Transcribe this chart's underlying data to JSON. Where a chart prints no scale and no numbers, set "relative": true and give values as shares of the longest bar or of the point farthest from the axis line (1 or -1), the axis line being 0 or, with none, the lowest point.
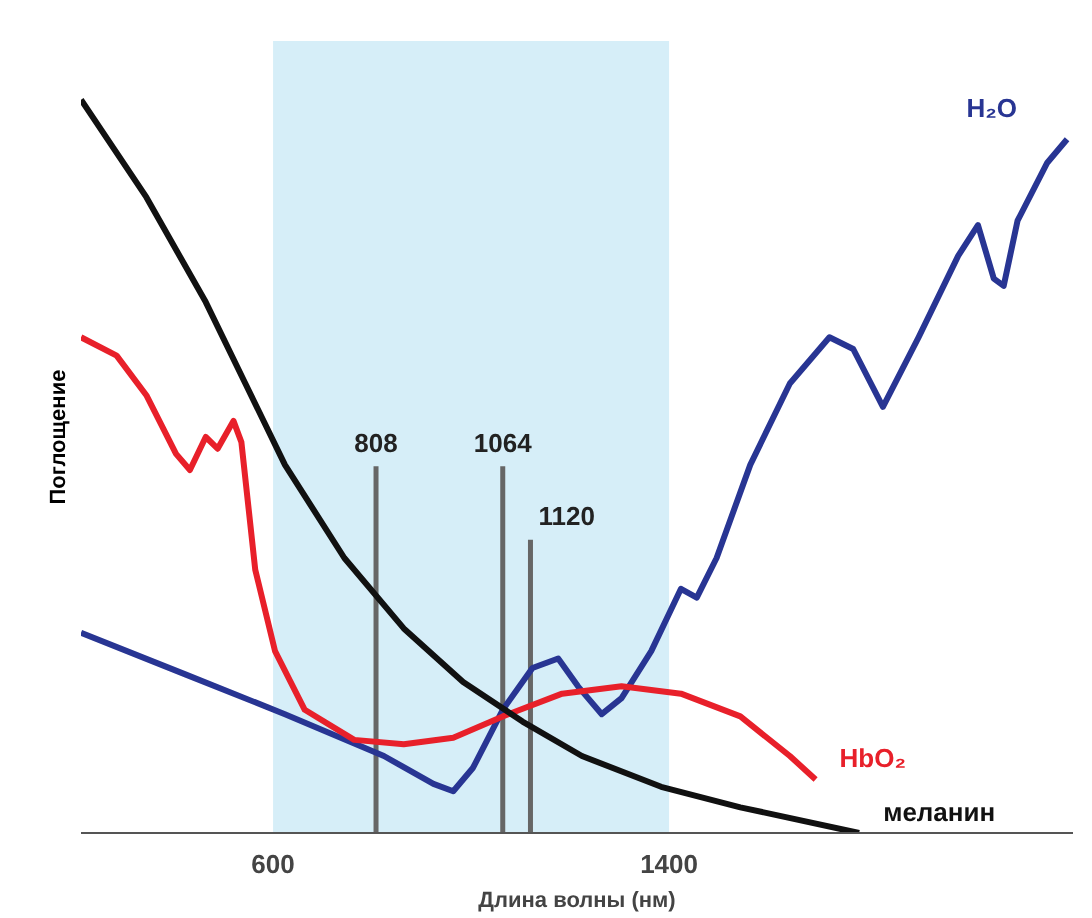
{
  "chart_data": {
    "type": "line",
    "relative": true,
    "xlabel": "Длина волны (нм)",
    "ylabel": "Поглощение",
    "xlim": [
      212,
      2216
    ],
    "xticks": [
      600,
      1400
    ],
    "grid": false,
    "legend": false,
    "series": [
      {
        "name": "H₂O",
        "color": "#283593",
        "x": [
          212,
          424,
          624,
          824,
          924,
          964,
          1004,
          1064,
          1124,
          1176,
          1216,
          1264,
          1304,
          1364,
          1424,
          1456,
          1496,
          1564,
          1644,
          1724,
          1772,
          1832,
          1904,
          1984,
          2024,
          2056,
          2076,
          2104,
          2164,
          2204
        ],
        "values": [
          0.273,
          0.216,
          0.162,
          0.105,
          0.067,
          0.057,
          0.089,
          0.168,
          0.225,
          0.238,
          0.2,
          0.162,
          0.184,
          0.248,
          0.333,
          0.321,
          0.375,
          0.502,
          0.613,
          0.676,
          0.66,
          0.581,
          0.676,
          0.787,
          0.829,
          0.756,
          0.746,
          0.835,
          0.914,
          0.946
        ]
      },
      {
        "name": "HbO₂",
        "color": "#e8202a",
        "x": [
          212,
          284,
          344,
          404,
          432,
          464,
          488,
          520,
          536,
          564,
          604,
          664,
          764,
          864,
          964,
          1064,
          1184,
          1304,
          1424,
          1544,
          1644,
          1696
        ],
        "values": [
          0.676,
          0.651,
          0.597,
          0.517,
          0.495,
          0.54,
          0.524,
          0.562,
          0.533,
          0.359,
          0.248,
          0.168,
          0.127,
          0.121,
          0.13,
          0.159,
          0.19,
          0.2,
          0.19,
          0.159,
          0.105,
          0.073
        ]
      },
      {
        "name": "меланин",
        "color": "#111111",
        "x": [
          212,
          344,
          464,
          544,
          624,
          744,
          864,
          984,
          1104,
          1224,
          1384,
          1544,
          1784
        ],
        "values": [
          1.0,
          0.867,
          0.724,
          0.613,
          0.502,
          0.375,
          0.279,
          0.206,
          0.152,
          0.105,
          0.063,
          0.035,
          0.0
        ]
      }
    ],
    "bands": [
      {
        "axis": "x",
        "from": 600,
        "to": 1400,
        "color": "#d6eef8"
      }
    ],
    "ref_lines": [
      {
        "axis": "x",
        "value": 808,
        "label": "808",
        "color": "#666666"
      },
      {
        "axis": "x",
        "value": 1064,
        "label": "1064",
        "color": "#666666"
      },
      {
        "axis": "x",
        "value": 1120,
        "label": "1120",
        "color": "#666666"
      }
    ]
  }
}
